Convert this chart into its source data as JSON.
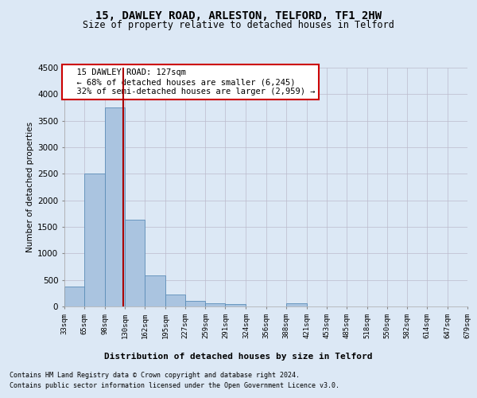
{
  "title": "15, DAWLEY ROAD, ARLESTON, TELFORD, TF1 2HW",
  "subtitle": "Size of property relative to detached houses in Telford",
  "xlabel": "Distribution of detached houses by size in Telford",
  "ylabel": "Number of detached properties",
  "annotation_line1": "15 DAWLEY ROAD: 127sqm",
  "annotation_line2": "← 68% of detached houses are smaller (6,245)",
  "annotation_line3": "32% of semi-detached houses are larger (2,959) →",
  "footnote1": "Contains HM Land Registry data © Crown copyright and database right 2024.",
  "footnote2": "Contains public sector information licensed under the Open Government Licence v3.0.",
  "property_size": 127,
  "bin_edges": [
    33,
    65,
    98,
    130,
    162,
    195,
    227,
    259,
    291,
    324,
    356,
    388,
    421,
    453,
    485,
    518,
    550,
    582,
    614,
    647,
    679
  ],
  "bar_heights": [
    370,
    2500,
    3750,
    1640,
    590,
    225,
    105,
    60,
    50,
    0,
    0,
    60,
    0,
    0,
    0,
    0,
    0,
    0,
    0,
    0
  ],
  "bar_color": "#aac4e0",
  "bar_edge_color": "#5b8db8",
  "vline_color": "#aa0000",
  "vline_x": 127,
  "ylim": [
    0,
    4500
  ],
  "fig_background": "#dce8f5",
  "plot_background": "#dce8f5",
  "annotation_box_color": "#ffffff",
  "annotation_box_edge": "#cc0000",
  "grid_color": "#bbbbcc"
}
